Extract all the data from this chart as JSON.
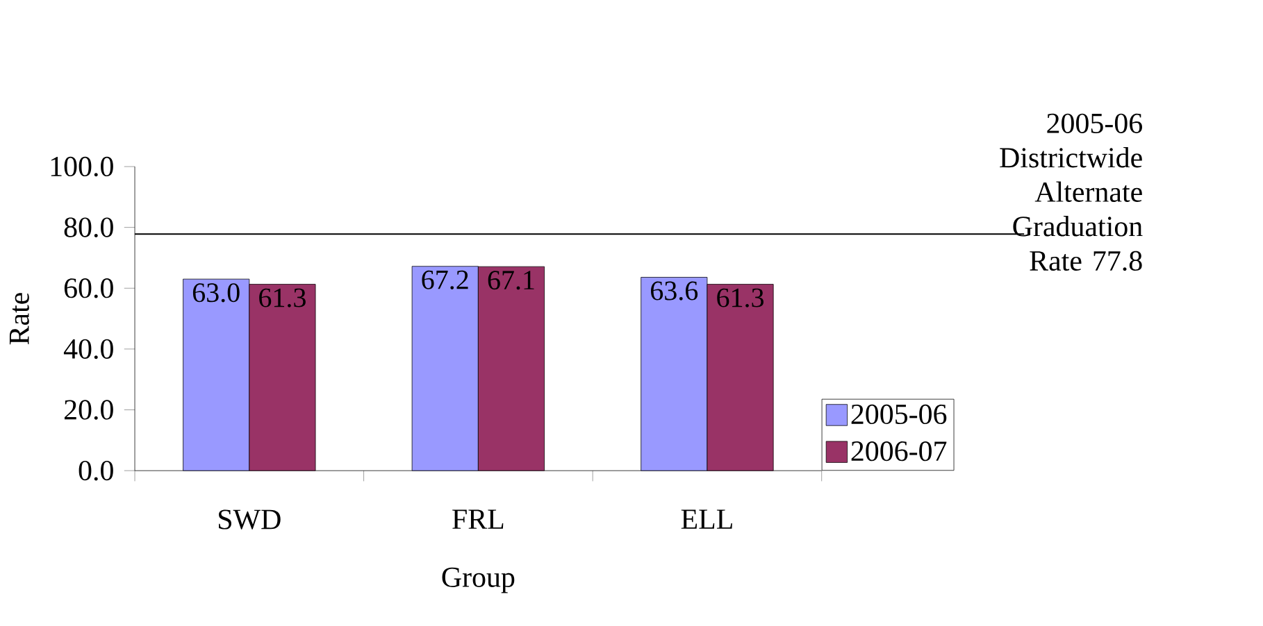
{
  "chart_data": {
    "type": "bar",
    "xlabel": "Group",
    "ylabel": "Rate",
    "categories": [
      "SWD",
      "FRL",
      "ELL"
    ],
    "series": [
      {
        "name": "2005-06",
        "color": "#9999ff",
        "values": [
          63.0,
          67.2,
          63.6
        ],
        "value_labels": [
          "63.0",
          "67.2",
          "63.6"
        ]
      },
      {
        "name": "2006-07",
        "color": "#993366",
        "values": [
          61.3,
          67.1,
          61.3
        ],
        "value_labels": [
          "61.3",
          "67.1",
          "61.3"
        ]
      }
    ],
    "ylim": [
      0,
      100
    ],
    "yticks": [
      {
        "value": 0,
        "label": "0.0"
      },
      {
        "value": 20,
        "label": "20.0"
      },
      {
        "value": 40,
        "label": "40.0"
      },
      {
        "value": 60,
        "label": "60.0"
      },
      {
        "value": 80,
        "label": "80.0"
      },
      {
        "value": 100,
        "label": "100.0"
      }
    ],
    "ref_lines": [
      {
        "axis": "y",
        "value": 77.8,
        "label": "2005-06 Districtwide Alternate Graduation Rate 77.8",
        "color": "#000000"
      }
    ],
    "legend": "right",
    "grid": false
  }
}
